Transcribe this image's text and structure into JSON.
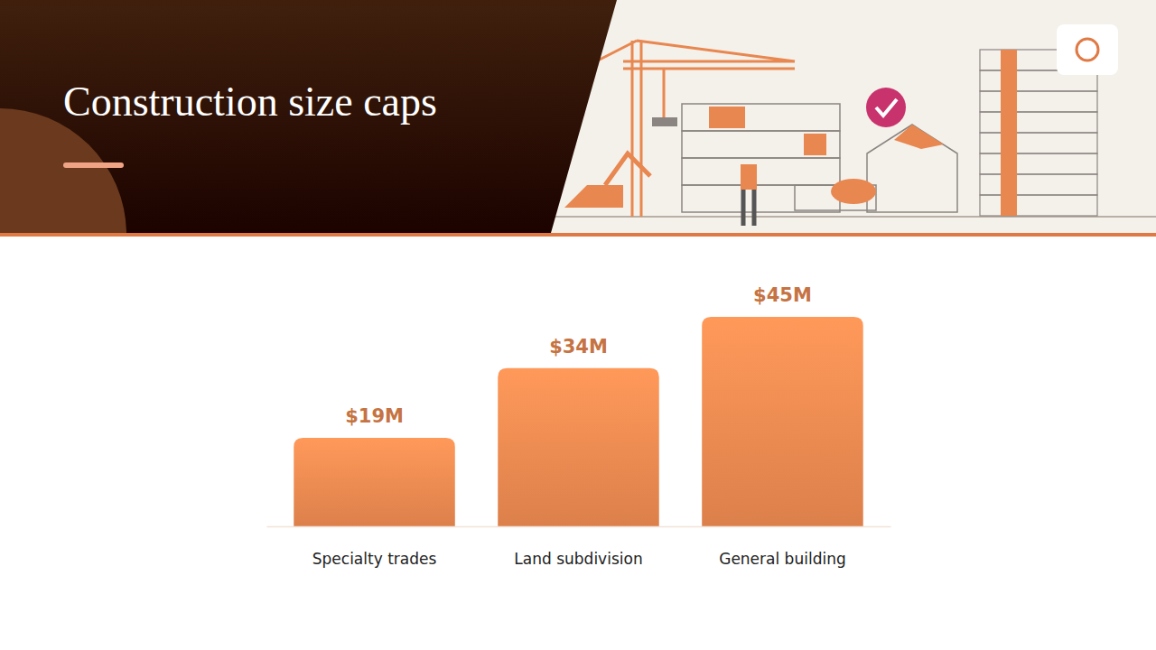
{
  "chart_data": {
    "type": "bar",
    "title": "Construction size caps",
    "categories": [
      "Specialty trades",
      "Land subdivision",
      "General building"
    ],
    "values": [
      19,
      34,
      45
    ],
    "value_labels": [
      "$19M",
      "$34M",
      "$45M"
    ],
    "color": "#e8874f",
    "ylim": [
      0,
      45
    ],
    "data_labels": true,
    "tick_labels": "x"
  }
}
